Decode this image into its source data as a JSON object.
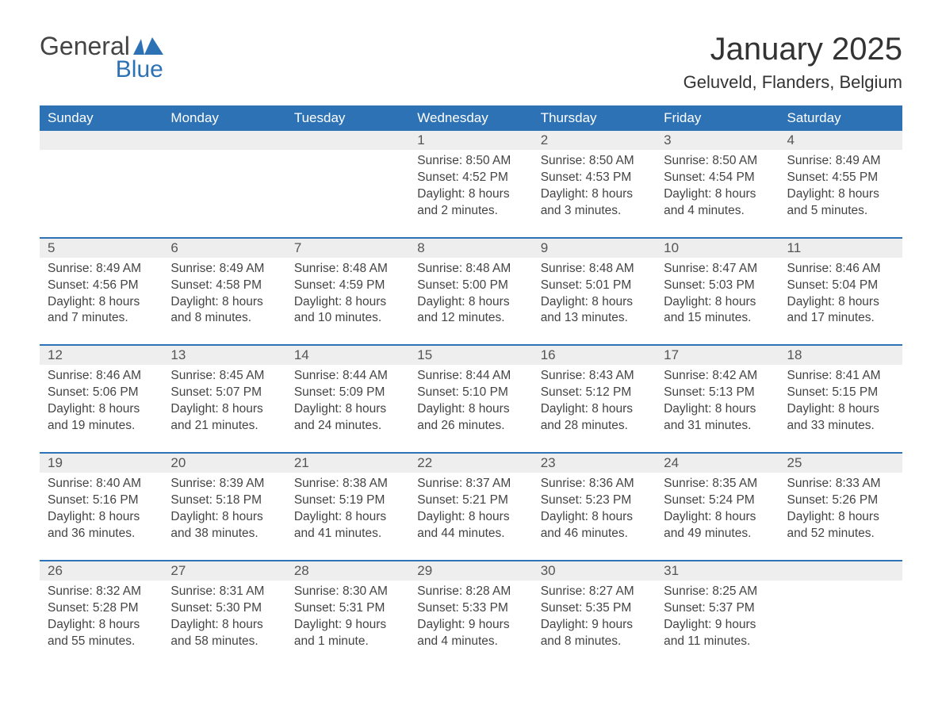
{
  "brand": {
    "general": "General",
    "blue": "Blue"
  },
  "header": {
    "month_title": "January 2025",
    "location": "Geluveld, Flanders, Belgium"
  },
  "colors": {
    "header_bg": "#2d72b5",
    "header_text": "#ffffff",
    "row_stripe": "#eeeeee",
    "divider": "#2d72b5",
    "body_text": "#444444",
    "logo_blue": "#2d72b5"
  },
  "calendar": {
    "type": "table",
    "columns": [
      "Sunday",
      "Monday",
      "Tuesday",
      "Wednesday",
      "Thursday",
      "Friday",
      "Saturday"
    ],
    "weeks": [
      [
        null,
        null,
        null,
        {
          "n": "1",
          "sunrise": "Sunrise: 8:50 AM",
          "sunset": "Sunset: 4:52 PM",
          "daylight": "Daylight: 8 hours and 2 minutes."
        },
        {
          "n": "2",
          "sunrise": "Sunrise: 8:50 AM",
          "sunset": "Sunset: 4:53 PM",
          "daylight": "Daylight: 8 hours and 3 minutes."
        },
        {
          "n": "3",
          "sunrise": "Sunrise: 8:50 AM",
          "sunset": "Sunset: 4:54 PM",
          "daylight": "Daylight: 8 hours and 4 minutes."
        },
        {
          "n": "4",
          "sunrise": "Sunrise: 8:49 AM",
          "sunset": "Sunset: 4:55 PM",
          "daylight": "Daylight: 8 hours and 5 minutes."
        }
      ],
      [
        {
          "n": "5",
          "sunrise": "Sunrise: 8:49 AM",
          "sunset": "Sunset: 4:56 PM",
          "daylight": "Daylight: 8 hours and 7 minutes."
        },
        {
          "n": "6",
          "sunrise": "Sunrise: 8:49 AM",
          "sunset": "Sunset: 4:58 PM",
          "daylight": "Daylight: 8 hours and 8 minutes."
        },
        {
          "n": "7",
          "sunrise": "Sunrise: 8:48 AM",
          "sunset": "Sunset: 4:59 PM",
          "daylight": "Daylight: 8 hours and 10 minutes."
        },
        {
          "n": "8",
          "sunrise": "Sunrise: 8:48 AM",
          "sunset": "Sunset: 5:00 PM",
          "daylight": "Daylight: 8 hours and 12 minutes."
        },
        {
          "n": "9",
          "sunrise": "Sunrise: 8:48 AM",
          "sunset": "Sunset: 5:01 PM",
          "daylight": "Daylight: 8 hours and 13 minutes."
        },
        {
          "n": "10",
          "sunrise": "Sunrise: 8:47 AM",
          "sunset": "Sunset: 5:03 PM",
          "daylight": "Daylight: 8 hours and 15 minutes."
        },
        {
          "n": "11",
          "sunrise": "Sunrise: 8:46 AM",
          "sunset": "Sunset: 5:04 PM",
          "daylight": "Daylight: 8 hours and 17 minutes."
        }
      ],
      [
        {
          "n": "12",
          "sunrise": "Sunrise: 8:46 AM",
          "sunset": "Sunset: 5:06 PM",
          "daylight": "Daylight: 8 hours and 19 minutes."
        },
        {
          "n": "13",
          "sunrise": "Sunrise: 8:45 AM",
          "sunset": "Sunset: 5:07 PM",
          "daylight": "Daylight: 8 hours and 21 minutes."
        },
        {
          "n": "14",
          "sunrise": "Sunrise: 8:44 AM",
          "sunset": "Sunset: 5:09 PM",
          "daylight": "Daylight: 8 hours and 24 minutes."
        },
        {
          "n": "15",
          "sunrise": "Sunrise: 8:44 AM",
          "sunset": "Sunset: 5:10 PM",
          "daylight": "Daylight: 8 hours and 26 minutes."
        },
        {
          "n": "16",
          "sunrise": "Sunrise: 8:43 AM",
          "sunset": "Sunset: 5:12 PM",
          "daylight": "Daylight: 8 hours and 28 minutes."
        },
        {
          "n": "17",
          "sunrise": "Sunrise: 8:42 AM",
          "sunset": "Sunset: 5:13 PM",
          "daylight": "Daylight: 8 hours and 31 minutes."
        },
        {
          "n": "18",
          "sunrise": "Sunrise: 8:41 AM",
          "sunset": "Sunset: 5:15 PM",
          "daylight": "Daylight: 8 hours and 33 minutes."
        }
      ],
      [
        {
          "n": "19",
          "sunrise": "Sunrise: 8:40 AM",
          "sunset": "Sunset: 5:16 PM",
          "daylight": "Daylight: 8 hours and 36 minutes."
        },
        {
          "n": "20",
          "sunrise": "Sunrise: 8:39 AM",
          "sunset": "Sunset: 5:18 PM",
          "daylight": "Daylight: 8 hours and 38 minutes."
        },
        {
          "n": "21",
          "sunrise": "Sunrise: 8:38 AM",
          "sunset": "Sunset: 5:19 PM",
          "daylight": "Daylight: 8 hours and 41 minutes."
        },
        {
          "n": "22",
          "sunrise": "Sunrise: 8:37 AM",
          "sunset": "Sunset: 5:21 PM",
          "daylight": "Daylight: 8 hours and 44 minutes."
        },
        {
          "n": "23",
          "sunrise": "Sunrise: 8:36 AM",
          "sunset": "Sunset: 5:23 PM",
          "daylight": "Daylight: 8 hours and 46 minutes."
        },
        {
          "n": "24",
          "sunrise": "Sunrise: 8:35 AM",
          "sunset": "Sunset: 5:24 PM",
          "daylight": "Daylight: 8 hours and 49 minutes."
        },
        {
          "n": "25",
          "sunrise": "Sunrise: 8:33 AM",
          "sunset": "Sunset: 5:26 PM",
          "daylight": "Daylight: 8 hours and 52 minutes."
        }
      ],
      [
        {
          "n": "26",
          "sunrise": "Sunrise: 8:32 AM",
          "sunset": "Sunset: 5:28 PM",
          "daylight": "Daylight: 8 hours and 55 minutes."
        },
        {
          "n": "27",
          "sunrise": "Sunrise: 8:31 AM",
          "sunset": "Sunset: 5:30 PM",
          "daylight": "Daylight: 8 hours and 58 minutes."
        },
        {
          "n": "28",
          "sunrise": "Sunrise: 8:30 AM",
          "sunset": "Sunset: 5:31 PM",
          "daylight": "Daylight: 9 hours and 1 minute."
        },
        {
          "n": "29",
          "sunrise": "Sunrise: 8:28 AM",
          "sunset": "Sunset: 5:33 PM",
          "daylight": "Daylight: 9 hours and 4 minutes."
        },
        {
          "n": "30",
          "sunrise": "Sunrise: 8:27 AM",
          "sunset": "Sunset: 5:35 PM",
          "daylight": "Daylight: 9 hours and 8 minutes."
        },
        {
          "n": "31",
          "sunrise": "Sunrise: 8:25 AM",
          "sunset": "Sunset: 5:37 PM",
          "daylight": "Daylight: 9 hours and 11 minutes."
        },
        null
      ]
    ]
  }
}
